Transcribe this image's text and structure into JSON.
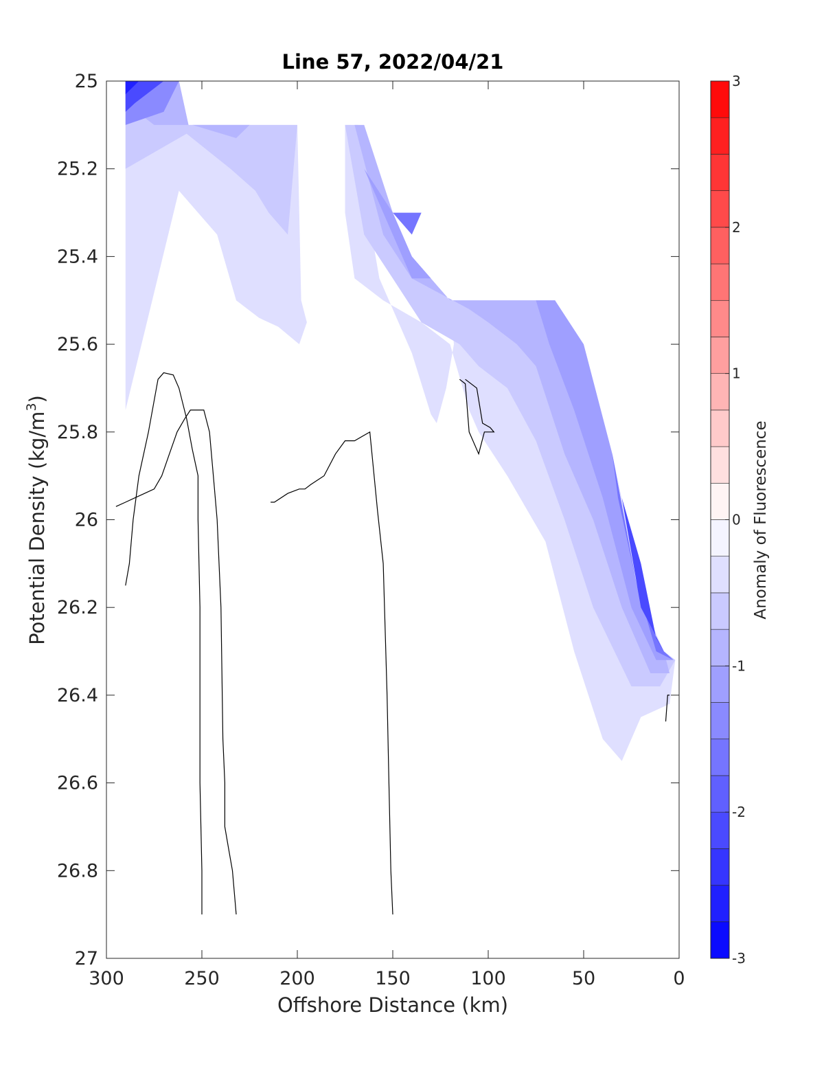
{
  "chart_data": {
    "type": "contour",
    "title": "Line 57, 2022/04/21",
    "xlabel": "Offshore Distance (km)",
    "ylabel": "Potential Density (kg/m",
    "ylabel_superscript": "3",
    "ylabel_suffix": ")",
    "xlim": [
      300,
      0
    ],
    "ylim": [
      25,
      27
    ],
    "x_reversed": true,
    "y_reversed": true,
    "x_ticks": [
      300,
      250,
      200,
      150,
      100,
      50,
      0
    ],
    "x_tick_labels": [
      "300",
      "250",
      "200",
      "150",
      "100",
      "50",
      "0"
    ],
    "y_ticks": [
      25,
      25.2,
      25.4,
      25.6,
      25.8,
      26,
      26.2,
      26.4,
      26.6,
      26.8,
      27
    ],
    "y_tick_labels": [
      "25",
      "25.2",
      "25.4",
      "25.6",
      "25.8",
      "26",
      "26.2",
      "26.4",
      "26.6",
      "26.8",
      "27"
    ],
    "colorbar": {
      "label": "Anomaly of Fluorescence",
      "range": [
        -3,
        3
      ],
      "ticks": [
        -3,
        -2,
        -1,
        0,
        1,
        2,
        3
      ],
      "tick_labels": [
        "-3",
        "-2",
        "-1",
        "0",
        "1",
        "2",
        "3"
      ],
      "levels": [
        -3,
        -2.75,
        -2.5,
        -2.25,
        -2,
        -1.75,
        -1.5,
        -1.25,
        -1,
        -0.75,
        -0.5,
        -0.25,
        0,
        0.25,
        0.5,
        0.75,
        1,
        1.25,
        1.5,
        1.75,
        2,
        2.25,
        2.5,
        2.75,
        3
      ],
      "colormap": "blue-white-red"
    },
    "filled_regions": [
      {
        "level": -0.25,
        "points": [
          [
            290,
            25
          ],
          [
            262,
            25
          ],
          [
            257,
            25.1
          ],
          [
            200,
            25.1
          ],
          [
            198,
            25.5
          ],
          [
            195,
            25.55
          ],
          [
            199,
            25.6
          ],
          [
            210,
            25.56
          ],
          [
            220,
            25.54
          ],
          [
            232,
            25.5
          ],
          [
            242,
            25.35
          ],
          [
            262,
            25.25
          ],
          [
            290,
            25.75
          ]
        ]
      },
      {
        "level": -0.5,
        "points": [
          [
            290,
            25
          ],
          [
            262,
            25
          ],
          [
            257,
            25.1
          ],
          [
            200,
            25.1
          ],
          [
            205,
            25.35
          ],
          [
            215,
            25.3
          ],
          [
            222,
            25.25
          ],
          [
            235,
            25.2
          ],
          [
            258,
            25.12
          ],
          [
            290,
            25.2
          ]
        ]
      },
      {
        "level": -0.75,
        "points": [
          [
            290,
            25
          ],
          [
            262,
            25
          ],
          [
            257,
            25.1
          ],
          [
            225,
            25.1
          ],
          [
            232,
            25.13
          ],
          [
            255,
            25.1
          ],
          [
            275,
            25.1
          ],
          [
            290,
            25.05
          ]
        ]
      },
      {
        "level": -1.25,
        "points": [
          [
            290,
            25
          ],
          [
            262,
            25
          ],
          [
            270,
            25.07
          ],
          [
            290,
            25.1
          ]
        ]
      },
      {
        "level": -2.0,
        "points": [
          [
            290,
            25
          ],
          [
            270,
            25
          ],
          [
            285,
            25.05
          ],
          [
            290,
            25.07
          ]
        ]
      },
      {
        "level": -2.5,
        "points": [
          [
            290,
            25
          ],
          [
            283,
            25
          ],
          [
            290,
            25.03
          ]
        ]
      },
      {
        "level": -0.25,
        "points": [
          [
            175,
            25.1
          ],
          [
            172,
            25.1
          ],
          [
            163,
            25.3
          ],
          [
            157,
            25.45
          ],
          [
            140,
            25.62
          ],
          [
            130,
            25.76
          ],
          [
            127,
            25.78
          ],
          [
            122,
            25.7
          ],
          [
            118,
            25.6
          ],
          [
            120,
            25.5
          ],
          [
            65,
            25.5
          ],
          [
            35,
            25.85
          ],
          [
            18,
            26.2
          ],
          [
            8,
            26.3
          ],
          [
            2,
            26.32
          ],
          [
            5,
            26.42
          ],
          [
            20,
            26.45
          ],
          [
            25,
            26.5
          ],
          [
            30,
            26.55
          ],
          [
            40,
            26.5
          ],
          [
            55,
            26.3
          ],
          [
            70,
            26.05
          ],
          [
            90,
            25.9
          ],
          [
            105,
            25.8
          ],
          [
            110,
            25.75
          ],
          [
            120,
            25.6
          ],
          [
            135,
            25.55
          ],
          [
            155,
            25.5
          ],
          [
            170,
            25.45
          ],
          [
            175,
            25.3
          ]
        ]
      },
      {
        "level": -0.5,
        "points": [
          [
            175,
            25.1
          ],
          [
            168,
            25.1
          ],
          [
            150,
            25.3
          ],
          [
            140,
            25.4
          ],
          [
            132,
            25.45
          ],
          [
            120,
            25.5
          ],
          [
            65,
            25.5
          ],
          [
            40,
            25.8
          ],
          [
            20,
            26.2
          ],
          [
            8,
            26.3
          ],
          [
            2,
            26.32
          ],
          [
            10,
            26.38
          ],
          [
            25,
            26.38
          ],
          [
            45,
            26.2
          ],
          [
            60,
            26.0
          ],
          [
            75,
            25.82
          ],
          [
            90,
            25.7
          ],
          [
            105,
            25.65
          ],
          [
            115,
            25.6
          ],
          [
            135,
            25.55
          ],
          [
            150,
            25.45
          ],
          [
            165,
            25.35
          ]
        ]
      },
      {
        "level": -0.75,
        "points": [
          [
            170,
            25.1
          ],
          [
            165,
            25.1
          ],
          [
            150,
            25.3
          ],
          [
            140,
            25.4
          ],
          [
            120,
            25.5
          ],
          [
            65,
            25.5
          ],
          [
            40,
            25.8
          ],
          [
            20,
            26.2
          ],
          [
            8,
            26.3
          ],
          [
            5,
            26.35
          ],
          [
            15,
            26.35
          ],
          [
            30,
            26.2
          ],
          [
            45,
            26.0
          ],
          [
            60,
            25.85
          ],
          [
            75,
            25.65
          ],
          [
            85,
            25.6
          ],
          [
            100,
            25.55
          ],
          [
            110,
            25.52
          ],
          [
            140,
            25.45
          ],
          [
            155,
            25.35
          ]
        ]
      },
      {
        "level": -1.0,
        "points": [
          [
            165,
            25.2
          ],
          [
            150,
            25.3
          ],
          [
            140,
            25.4
          ],
          [
            130,
            25.45
          ],
          [
            140,
            25.45
          ],
          [
            150,
            25.35
          ]
        ]
      },
      {
        "level": -1.0,
        "points": [
          [
            75,
            25.5
          ],
          [
            65,
            25.5
          ],
          [
            50,
            25.6
          ],
          [
            35,
            25.85
          ],
          [
            20,
            26.2
          ],
          [
            8,
            26.3
          ],
          [
            3,
            26.32
          ],
          [
            12,
            26.32
          ],
          [
            25,
            26.2
          ],
          [
            40,
            25.95
          ],
          [
            55,
            25.75
          ],
          [
            68,
            25.6
          ]
        ]
      },
      {
        "level": -1.5,
        "points": [
          [
            150,
            25.3
          ],
          [
            135,
            25.3
          ],
          [
            140,
            25.35
          ]
        ]
      },
      {
        "level": -1.5,
        "points": [
          [
            35,
            25.85
          ],
          [
            20,
            26.2
          ],
          [
            8,
            26.3
          ],
          [
            3,
            26.32
          ],
          [
            12,
            26.3
          ],
          [
            22,
            26.15
          ],
          [
            32,
            25.95
          ]
        ]
      },
      {
        "level": -2.0,
        "points": [
          [
            30,
            25.95
          ],
          [
            20,
            26.2
          ],
          [
            8,
            26.3
          ],
          [
            12,
            26.27
          ],
          [
            20,
            26.1
          ]
        ]
      }
    ],
    "zero_contours": [
      {
        "points": [
          [
            290,
            26.15
          ],
          [
            288,
            26.1
          ],
          [
            286,
            26.0
          ],
          [
            283,
            25.9
          ],
          [
            278,
            25.8
          ],
          [
            273,
            25.68
          ],
          [
            270,
            25.665
          ],
          [
            265,
            25.67
          ],
          [
            262,
            25.7
          ],
          [
            258,
            25.77
          ],
          [
            255,
            25.84
          ],
          [
            252,
            25.9
          ],
          [
            252,
            26.0
          ],
          [
            251,
            26.2
          ],
          [
            251,
            26.4
          ],
          [
            251,
            26.6
          ],
          [
            250,
            26.8
          ],
          [
            250,
            26.9
          ]
        ]
      },
      {
        "points": [
          [
            232,
            26.9
          ],
          [
            234,
            26.8
          ],
          [
            236,
            26.75
          ],
          [
            238,
            26.7
          ],
          [
            238,
            26.6
          ],
          [
            239,
            26.5
          ],
          [
            240,
            26.2
          ],
          [
            242,
            26.0
          ],
          [
            244,
            25.9
          ],
          [
            246,
            25.8
          ],
          [
            249,
            25.75
          ],
          [
            252,
            25.75
          ],
          [
            256,
            25.75
          ],
          [
            259,
            25.77
          ],
          [
            263,
            25.8
          ],
          [
            267,
            25.85
          ],
          [
            271,
            25.9
          ],
          [
            275,
            25.93
          ],
          [
            280,
            25.94
          ],
          [
            285,
            25.95
          ],
          [
            290,
            25.96
          ],
          [
            295,
            25.97
          ]
        ]
      },
      {
        "points": [
          [
            115,
            25.68
          ],
          [
            112,
            25.69
          ],
          [
            110,
            25.8
          ],
          [
            105,
            25.85
          ],
          [
            102,
            25.8
          ],
          [
            97,
            25.8
          ],
          [
            99,
            25.79
          ],
          [
            103,
            25.78
          ],
          [
            106,
            25.7
          ],
          [
            112,
            25.68
          ]
        ]
      },
      {
        "points": [
          [
            7,
            26.46
          ],
          [
            6,
            26.4
          ],
          [
            5,
            26.4
          ]
        ]
      }
    ],
    "zero_contour_extra": [
      {
        "points": [
          [
            214,
            25.96
          ],
          [
            212,
            25.96
          ],
          [
            205,
            25.94
          ],
          [
            199,
            25.93
          ],
          [
            196,
            25.93
          ],
          [
            193,
            25.92
          ],
          [
            186,
            25.9
          ],
          [
            180,
            25.85
          ],
          [
            175,
            25.82
          ],
          [
            170,
            25.82
          ],
          [
            162,
            25.8
          ],
          [
            158,
            25.98
          ],
          [
            155,
            26.1
          ],
          [
            153,
            26.4
          ],
          [
            152,
            26.6
          ],
          [
            151,
            26.8
          ],
          [
            150,
            26.9
          ]
        ]
      }
    ]
  }
}
